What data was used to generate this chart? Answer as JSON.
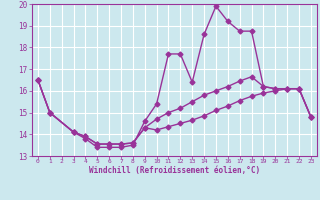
{
  "bg_color": "#cce8ee",
  "grid_color": "#ffffff",
  "line_color": "#993399",
  "marker": "D",
  "markersize": 2.5,
  "linewidth": 1.0,
  "xlabel": "Windchill (Refroidissement éolien,°C)",
  "xlim": [
    -0.5,
    23.5
  ],
  "ylim": [
    13,
    20
  ],
  "yticks": [
    13,
    14,
    15,
    16,
    17,
    18,
    19,
    20
  ],
  "xticks": [
    0,
    1,
    2,
    3,
    4,
    5,
    6,
    7,
    8,
    9,
    10,
    11,
    12,
    13,
    14,
    15,
    16,
    17,
    18,
    19,
    20,
    21,
    22,
    23
  ],
  "lines": [
    {
      "x": [
        0,
        1,
        3,
        4,
        5,
        6,
        7,
        8,
        9,
        10,
        11,
        12,
        13,
        14,
        15,
        16,
        17,
        18,
        19,
        20,
        21,
        22,
        23
      ],
      "y": [
        16.5,
        15.0,
        14.1,
        13.8,
        13.4,
        13.4,
        13.4,
        13.5,
        14.6,
        15.4,
        17.7,
        17.7,
        16.4,
        18.6,
        19.9,
        19.2,
        18.75,
        18.75,
        16.2,
        16.1,
        16.1,
        16.1,
        14.8
      ]
    },
    {
      "x": [
        0,
        1,
        3,
        4,
        5,
        6,
        7,
        8,
        9,
        10,
        11,
        12,
        13,
        14,
        15,
        16,
        17,
        18,
        19,
        20,
        21,
        22,
        23
      ],
      "y": [
        16.5,
        15.0,
        14.1,
        13.9,
        13.55,
        13.55,
        13.55,
        13.6,
        14.3,
        14.7,
        15.0,
        15.2,
        15.5,
        15.8,
        16.0,
        16.2,
        16.45,
        16.65,
        16.2,
        16.1,
        16.1,
        16.1,
        14.8
      ]
    },
    {
      "x": [
        0,
        1,
        3,
        4,
        5,
        6,
        7,
        8,
        9,
        10,
        11,
        12,
        13,
        14,
        15,
        16,
        17,
        18,
        19,
        20,
        21,
        22,
        23
      ],
      "y": [
        16.5,
        15.0,
        14.1,
        13.9,
        13.55,
        13.55,
        13.55,
        13.6,
        14.3,
        14.2,
        14.35,
        14.5,
        14.65,
        14.85,
        15.1,
        15.3,
        15.55,
        15.75,
        15.9,
        16.0,
        16.1,
        16.1,
        14.8
      ]
    }
  ]
}
